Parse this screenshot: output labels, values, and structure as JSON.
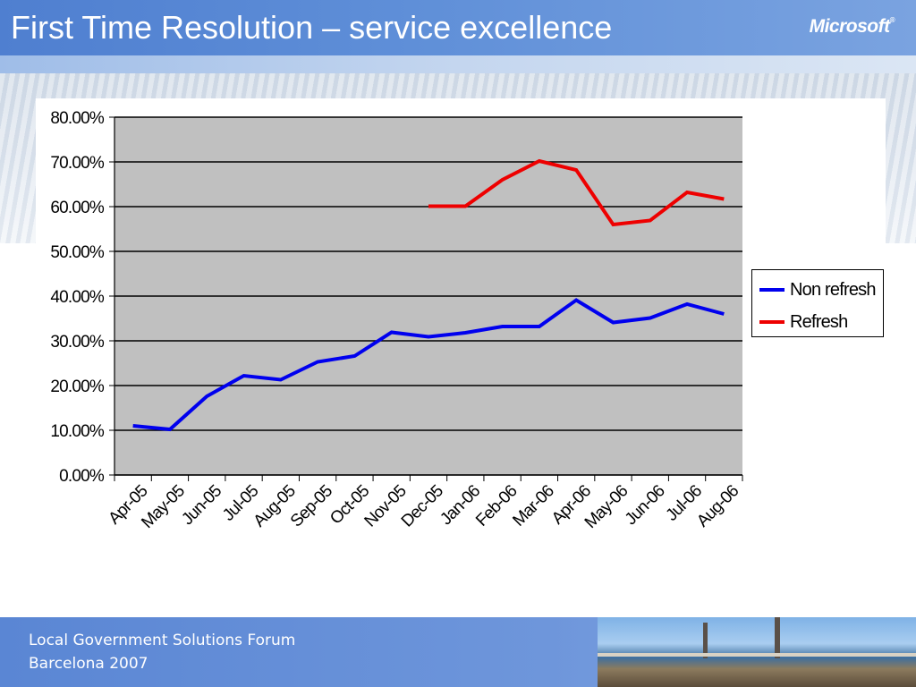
{
  "slide": {
    "title": "First Time Resolution – service excellence",
    "logo": "Microsoft",
    "footer_line1": "Local Government Solutions Forum",
    "footer_line2": "Barcelona 2007"
  },
  "colors": {
    "header": "#5a88d6",
    "plot_background": "#c0c0c0",
    "non_refresh": "#0000ee",
    "refresh": "#ee0000"
  },
  "chart_data": {
    "type": "line",
    "title": "",
    "xlabel": "",
    "ylabel": "",
    "categories": [
      "Apr-05",
      "May-05",
      "Jun-05",
      "Jul-05",
      "Aug-05",
      "Sep-05",
      "Oct-05",
      "Nov-05",
      "Dec-05",
      "Jan-06",
      "Feb-06",
      "Mar-06",
      "Apr-06",
      "May-06",
      "Jun-06",
      "Jul-06",
      "Aug-06"
    ],
    "y_ticks": [
      "0.00%",
      "10.00%",
      "20.00%",
      "30.00%",
      "40.00%",
      "50.00%",
      "60.00%",
      "70.00%",
      "80.00%"
    ],
    "ylim": [
      0,
      80
    ],
    "grid": "horizontal",
    "legend_position": "right",
    "series": [
      {
        "name": "Non refresh",
        "color": "#0000ee",
        "values": [
          11.0,
          10.2,
          17.6,
          22.2,
          21.3,
          25.3,
          26.6,
          31.9,
          30.9,
          31.8,
          33.2,
          33.2,
          39.1,
          34.1,
          35.1,
          38.2,
          36.0
        ]
      },
      {
        "name": "Refresh",
        "color": "#ee0000",
        "values": [
          null,
          null,
          null,
          null,
          null,
          null,
          null,
          null,
          60.1,
          60.1,
          66.0,
          70.2,
          68.2,
          56.0,
          56.9,
          63.2,
          61.7
        ]
      }
    ]
  }
}
